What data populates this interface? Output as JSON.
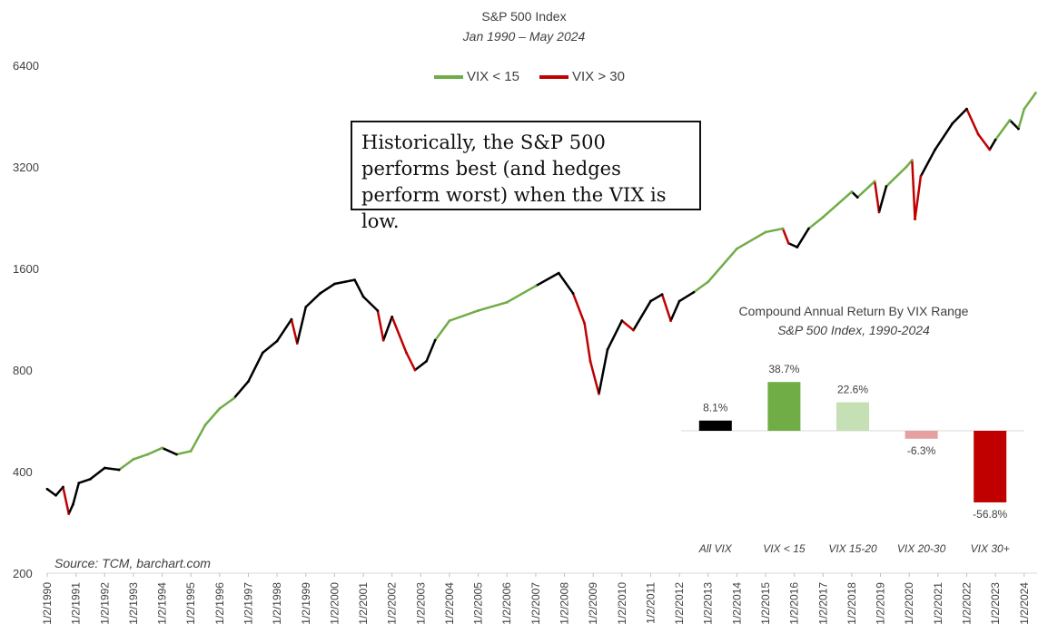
{
  "chart_data": [
    {
      "type": "line",
      "title": "S&P 500 Index",
      "subtitle": "Jan 1990 – May 2024",
      "y_scale": "log",
      "ylim": [
        200,
        6400
      ],
      "y_ticks": [
        "200",
        "400",
        "800",
        "1600",
        "3200",
        "6400"
      ],
      "x_ticks": [
        "1/2/1990",
        "1/2/1991",
        "1/2/1992",
        "1/2/1993",
        "1/2/1994",
        "1/2/1995",
        "1/2/1996",
        "1/2/1997",
        "1/2/1998",
        "1/2/1999",
        "1/2/2000",
        "1/2/2001",
        "1/2/2002",
        "1/2/2003",
        "1/2/2004",
        "1/2/2005",
        "1/2/2006",
        "1/2/2007",
        "1/2/2008",
        "1/2/2009",
        "1/2/2010",
        "1/2/2011",
        "1/2/2012",
        "1/2/2013",
        "1/2/2014",
        "1/2/2015",
        "1/2/2016",
        "1/2/2017",
        "1/2/2018",
        "1/2/2019",
        "1/2/2020",
        "1/2/2021",
        "1/2/2022",
        "1/2/2023",
        "1/2/2024"
      ],
      "legend": [
        "VIX < 15",
        "VIX > 30"
      ],
      "legend_placement": "top-center",
      "annotation": "Historically, the S&P 500 performs best (and hedges perform worst) when the VIX is low.",
      "source": "Source: TCM, barchart.com",
      "grid": false,
      "colors": {
        "low_vix": "#70ad47",
        "high_vix": "#c00000",
        "mid_vix": "#000000"
      },
      "series": [
        {
          "name": "S&P 500 Index",
          "points": [
            {
              "x": 1990.0,
              "y": 355,
              "regime": "mid"
            },
            {
              "x": 1990.3,
              "y": 340,
              "regime": "mid"
            },
            {
              "x": 1990.55,
              "y": 360,
              "regime": "mid"
            },
            {
              "x": 1990.75,
              "y": 300,
              "regime": "high"
            },
            {
              "x": 1990.9,
              "y": 320,
              "regime": "mid"
            },
            {
              "x": 1991.1,
              "y": 370,
              "regime": "mid"
            },
            {
              "x": 1991.5,
              "y": 380,
              "regime": "mid"
            },
            {
              "x": 1992.0,
              "y": 410,
              "regime": "mid"
            },
            {
              "x": 1992.5,
              "y": 405,
              "regime": "mid"
            },
            {
              "x": 1993.0,
              "y": 435,
              "regime": "low"
            },
            {
              "x": 1993.5,
              "y": 450,
              "regime": "low"
            },
            {
              "x": 1994.0,
              "y": 470,
              "regime": "low"
            },
            {
              "x": 1994.5,
              "y": 450,
              "regime": "mid"
            },
            {
              "x": 1995.0,
              "y": 460,
              "regime": "low"
            },
            {
              "x": 1995.5,
              "y": 550,
              "regime": "low"
            },
            {
              "x": 1996.0,
              "y": 615,
              "regime": "low"
            },
            {
              "x": 1996.5,
              "y": 660,
              "regime": "low"
            },
            {
              "x": 1997.0,
              "y": 740,
              "regime": "mid"
            },
            {
              "x": 1997.5,
              "y": 900,
              "regime": "mid"
            },
            {
              "x": 1998.0,
              "y": 975,
              "regime": "mid"
            },
            {
              "x": 1998.5,
              "y": 1130,
              "regime": "mid"
            },
            {
              "x": 1998.7,
              "y": 960,
              "regime": "high"
            },
            {
              "x": 1999.0,
              "y": 1230,
              "regime": "mid"
            },
            {
              "x": 1999.5,
              "y": 1350,
              "regime": "mid"
            },
            {
              "x": 2000.0,
              "y": 1440,
              "regime": "mid"
            },
            {
              "x": 2000.7,
              "y": 1480,
              "regime": "mid"
            },
            {
              "x": 2001.0,
              "y": 1320,
              "regime": "mid"
            },
            {
              "x": 2001.5,
              "y": 1200,
              "regime": "mid"
            },
            {
              "x": 2001.7,
              "y": 980,
              "regime": "high"
            },
            {
              "x": 2002.0,
              "y": 1150,
              "regime": "mid"
            },
            {
              "x": 2002.5,
              "y": 900,
              "regime": "high"
            },
            {
              "x": 2002.8,
              "y": 800,
              "regime": "high"
            },
            {
              "x": 2003.2,
              "y": 850,
              "regime": "mid"
            },
            {
              "x": 2003.5,
              "y": 980,
              "regime": "mid"
            },
            {
              "x": 2004.0,
              "y": 1120,
              "regime": "low"
            },
            {
              "x": 2005.0,
              "y": 1200,
              "regime": "low"
            },
            {
              "x": 2006.0,
              "y": 1270,
              "regime": "low"
            },
            {
              "x": 2007.0,
              "y": 1420,
              "regime": "low"
            },
            {
              "x": 2007.8,
              "y": 1550,
              "regime": "mid"
            },
            {
              "x": 2008.3,
              "y": 1350,
              "regime": "mid"
            },
            {
              "x": 2008.7,
              "y": 1100,
              "regime": "high"
            },
            {
              "x": 2008.9,
              "y": 850,
              "regime": "high"
            },
            {
              "x": 2009.2,
              "y": 680,
              "regime": "high"
            },
            {
              "x": 2009.5,
              "y": 920,
              "regime": "mid"
            },
            {
              "x": 2010.0,
              "y": 1120,
              "regime": "mid"
            },
            {
              "x": 2010.4,
              "y": 1050,
              "regime": "high"
            },
            {
              "x": 2011.0,
              "y": 1280,
              "regime": "mid"
            },
            {
              "x": 2011.4,
              "y": 1340,
              "regime": "mid"
            },
            {
              "x": 2011.7,
              "y": 1120,
              "regime": "high"
            },
            {
              "x": 2012.0,
              "y": 1280,
              "regime": "mid"
            },
            {
              "x": 2012.5,
              "y": 1360,
              "regime": "mid"
            },
            {
              "x": 2013.0,
              "y": 1460,
              "regime": "low"
            },
            {
              "x": 2014.0,
              "y": 1830,
              "regime": "low"
            },
            {
              "x": 2015.0,
              "y": 2050,
              "regime": "low"
            },
            {
              "x": 2015.6,
              "y": 2100,
              "regime": "low"
            },
            {
              "x": 2015.8,
              "y": 1900,
              "regime": "high"
            },
            {
              "x": 2016.1,
              "y": 1850,
              "regime": "mid"
            },
            {
              "x": 2016.5,
              "y": 2100,
              "regime": "mid"
            },
            {
              "x": 2017.0,
              "y": 2270,
              "regime": "low"
            },
            {
              "x": 2018.0,
              "y": 2700,
              "regime": "low"
            },
            {
              "x": 2018.2,
              "y": 2600,
              "regime": "mid"
            },
            {
              "x": 2018.8,
              "y": 2900,
              "regime": "low"
            },
            {
              "x": 2018.95,
              "y": 2350,
              "regime": "high"
            },
            {
              "x": 2019.2,
              "y": 2800,
              "regime": "mid"
            },
            {
              "x": 2019.9,
              "y": 3200,
              "regime": "low"
            },
            {
              "x": 2020.1,
              "y": 3350,
              "regime": "low"
            },
            {
              "x": 2020.2,
              "y": 2240,
              "regime": "high"
            },
            {
              "x": 2020.4,
              "y": 3000,
              "regime": "high"
            },
            {
              "x": 2020.9,
              "y": 3600,
              "regime": "mid"
            },
            {
              "x": 2021.5,
              "y": 4300,
              "regime": "mid"
            },
            {
              "x": 2022.0,
              "y": 4750,
              "regime": "mid"
            },
            {
              "x": 2022.4,
              "y": 4000,
              "regime": "high"
            },
            {
              "x": 2022.8,
              "y": 3600,
              "regime": "high"
            },
            {
              "x": 2023.0,
              "y": 3850,
              "regime": "mid"
            },
            {
              "x": 2023.5,
              "y": 4400,
              "regime": "low"
            },
            {
              "x": 2023.8,
              "y": 4150,
              "regime": "mid"
            },
            {
              "x": 2024.0,
              "y": 4750,
              "regime": "low"
            },
            {
              "x": 2024.4,
              "y": 5300,
              "regime": "low"
            }
          ]
        }
      ]
    },
    {
      "type": "bar",
      "title": "Compound Annual Return By VIX Range",
      "subtitle": "S&P 500 Index, 1990-2024",
      "categories": [
        "All VIX",
        "VIX < 15",
        "VIX 15-20",
        "VIX 20-30",
        "VIX 30+"
      ],
      "values": [
        8.1,
        38.7,
        22.6,
        -6.3,
        -56.8
      ],
      "value_labels": [
        "8.1%",
        "38.7%",
        "22.6%",
        "-6.3%",
        "-56.8%"
      ],
      "colors": [
        "#000000",
        "#70ad47",
        "#c5e0b4",
        "#e6a0a0",
        "#c00000"
      ],
      "ylim": [
        -60,
        40
      ],
      "grid": false
    }
  ]
}
